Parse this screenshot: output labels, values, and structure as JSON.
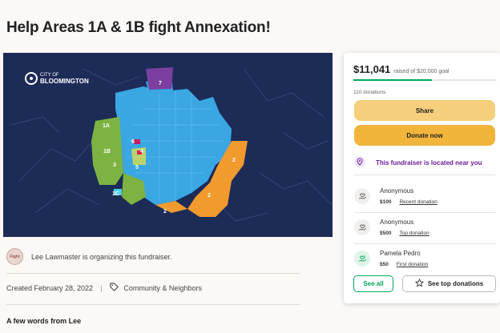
{
  "page": {
    "title": "Help Areas 1A & 1B fight Annexation!"
  },
  "map": {
    "logo_top": "CITY OF",
    "logo_bottom": "BLOOMINGTON",
    "area_labels": [
      "7",
      "1A",
      "1B",
      "6",
      "4",
      "5",
      "3",
      "1C",
      "2",
      "2",
      "2"
    ],
    "colors": {
      "background": "#1d2b57",
      "city": "#3aa7e3",
      "area1": "#7cb342",
      "area2": "#f19a2e",
      "area7": "#7b3fa0"
    }
  },
  "organizer": {
    "avatar_text": "Fight",
    "text": "Lee Lawmaster is organizing this fundraiser."
  },
  "meta": {
    "created": "Created February 28, 2022",
    "category": "Community & Neighbors"
  },
  "story": {
    "heading": "A few words from Lee"
  },
  "donation_card": {
    "amount": "$11,041",
    "goal_text": "raised of $20,000 goal",
    "progress": 0.55,
    "donation_count": "110 donations",
    "share_label": "Share",
    "donate_label": "Donate now",
    "nearby_text": "This fundraiser is located near you",
    "donors": [
      {
        "name": "Anonymous",
        "amount": "$100",
        "tag": "Recent donation"
      },
      {
        "name": "Anonymous",
        "amount": "$500",
        "tag": "Top donation"
      },
      {
        "name": "Pamela Pedro",
        "amount": "$50",
        "tag": "First donation"
      }
    ],
    "see_all_label": "See all",
    "top_donations_label": "See top donations",
    "colors": {
      "accent": "#02a95c",
      "share": "#f5cf7b",
      "donate": "#f2b53c",
      "nearby": "#6a1b9a"
    }
  }
}
